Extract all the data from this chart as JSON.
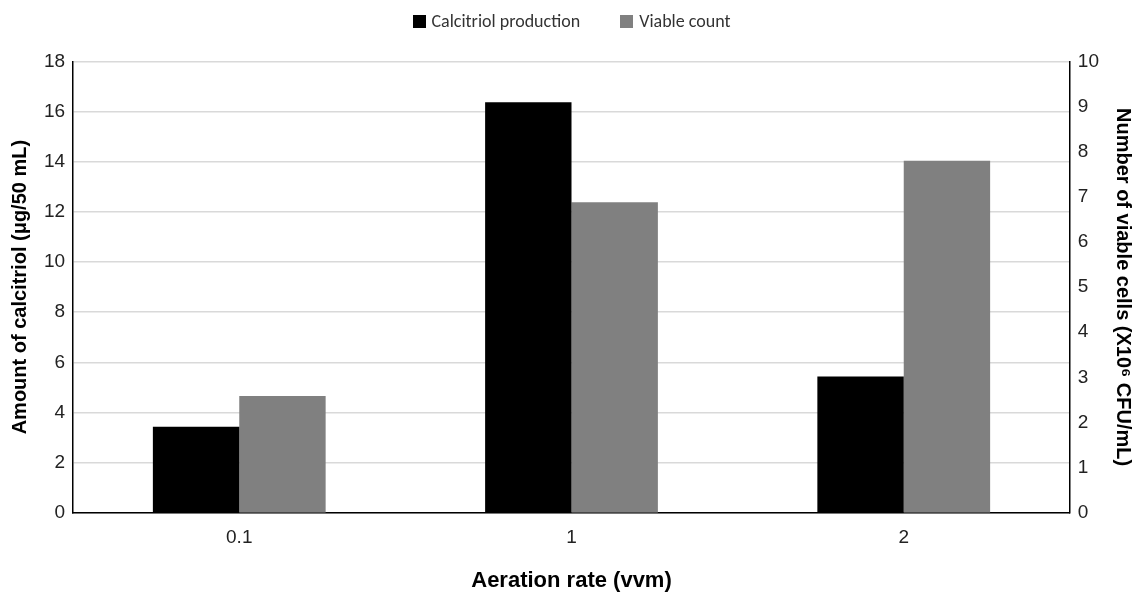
{
  "chart_data": {
    "type": "bar",
    "categories": [
      "0.1",
      "1",
      "2"
    ],
    "series": [
      {
        "name": "Calcitriol production",
        "color": "#000000",
        "values": [
          3.43,
          16.37,
          5.44
        ]
      },
      {
        "name": "Viable count",
        "color": "#808080",
        "values": [
          2.59,
          6.88,
          7.8
        ],
        "axis": "y2"
      }
    ],
    "xlabel": "Aeration rate (vvm)",
    "ylabel": "Amount of calcitriol (μg/50 mL)",
    "y2label": "Number of viable cells (X10⁶ CFU/mL)",
    "ylim": [
      0,
      18
    ],
    "yticks": [
      0,
      2,
      4,
      6,
      8,
      10,
      12,
      14,
      16,
      18
    ],
    "y2lim": [
      0,
      10
    ],
    "y2ticks": [
      0,
      1,
      2,
      3,
      4,
      5,
      6,
      7,
      8,
      9,
      10
    ],
    "grid": "y",
    "legend": "top"
  }
}
